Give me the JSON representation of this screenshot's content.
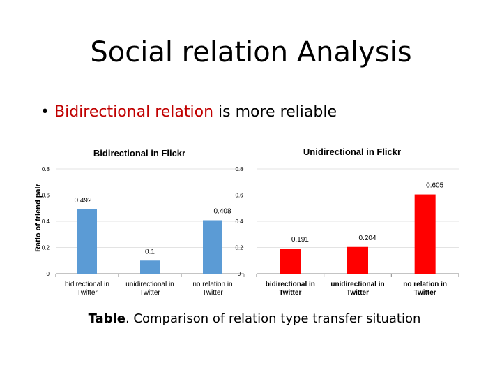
{
  "slide": {
    "title": "Social relation Analysis",
    "bullet_symbol": "•",
    "bullet_highlight": "Bidirectional relation",
    "bullet_rest": " is more reliable",
    "caption_label": "Table",
    "caption_text": ".  Comparison of relation type transfer situation",
    "colors": {
      "left_bars": "#5b9bd5",
      "right_bars": "#ff0000",
      "highlight_text": "#c00000"
    }
  },
  "chart_data": [
    {
      "type": "bar",
      "title": "Bidirectional in Flickr",
      "ylabel": "Ratio of friend pair",
      "categories": [
        "bidirectional in Twitter",
        "unidirectional in Twitter",
        "no relation in Twitter"
      ],
      "values": [
        0.492,
        0.1,
        0.408
      ],
      "data_labels": [
        "0.492",
        "0.1",
        "0.408"
      ],
      "ylim": [
        0,
        0.8
      ],
      "yticks": [
        "0",
        "0.2",
        "0.4",
        "0.6",
        "0.8"
      ]
    },
    {
      "type": "bar",
      "title": "Unidirectional in Flickr",
      "categories": [
        "bidirectional in Twitter",
        "unidirectional in Twitter",
        "no relation in Twitter"
      ],
      "values": [
        0.191,
        0.204,
        0.605
      ],
      "data_labels": [
        "0.191",
        "0.204",
        "0.605"
      ],
      "ylim": [
        0,
        0.8
      ],
      "yticks": [
        "0",
        "0.2",
        "0.4",
        "0.6",
        "0.8"
      ]
    }
  ]
}
